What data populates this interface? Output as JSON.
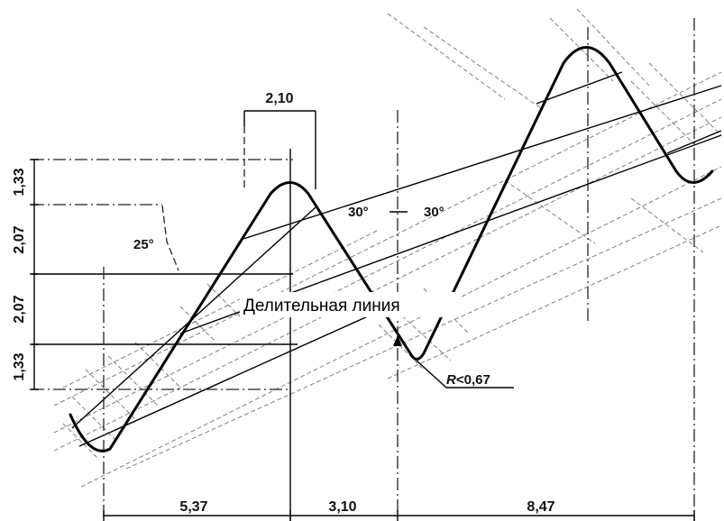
{
  "dimensions": {
    "top_width": "2,10",
    "left_1": "1,33",
    "left_2": "2,07",
    "left_3": "2,07",
    "left_4": "1,33",
    "bottom_1": "5,37",
    "bottom_2": "3,10",
    "bottom_3": "8,47"
  },
  "angles": {
    "left_angle": "25°",
    "center_left": "30°",
    "center_right": "30°"
  },
  "labels": {
    "pitch_line": "Делительная линия",
    "radius_prefix": "R",
    "radius_value": "<0,67"
  }
}
